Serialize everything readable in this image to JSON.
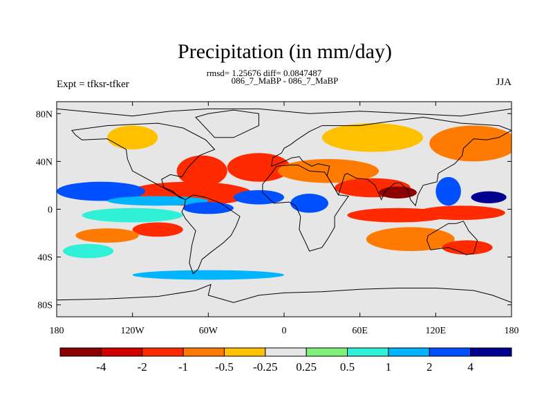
{
  "chart_data": {
    "type": "heatmap",
    "title": "Precipitation (in mm/day)",
    "subtitle_stats": "rmsd= 1.25676 diff= 0.0847487",
    "subtitle_runs": "086_7_MaBP - 086_7_MaBP",
    "left_label": "Expt = tfksr-tfker",
    "right_label": "JJA",
    "x_ticks": [
      "180",
      "120W",
      "60W",
      "0",
      "60E",
      "120E",
      "180"
    ],
    "x_tick_values": [
      -180,
      -120,
      -60,
      0,
      60,
      120,
      180
    ],
    "y_ticks": [
      "80N",
      "40N",
      "0",
      "40S",
      "80S"
    ],
    "y_tick_values": [
      80,
      40,
      0,
      -40,
      -80
    ],
    "xlim": [
      -180,
      180
    ],
    "ylim": [
      -90,
      90
    ],
    "colorbar": {
      "levels": [
        "-4",
        "-2",
        "-1",
        "-0.5",
        "-0.25",
        "0.25",
        "0.5",
        "1",
        "2",
        "4"
      ],
      "colors": [
        "#8b0000",
        "#d10000",
        "#ff2a00",
        "#ff7a00",
        "#ffc000",
        "#e6e6e6",
        "#7ff078",
        "#30f0d8",
        "#00b4ff",
        "#0050ff",
        "#000090"
      ]
    },
    "features": [
      {
        "lon": -105,
        "lat": 12,
        "rx": 50,
        "ry": 7,
        "class": 0
      },
      {
        "lon": -75,
        "lat": 13,
        "rx": 50,
        "ry": 10,
        "class": 2
      },
      {
        "lon": -65,
        "lat": 32,
        "rx": 20,
        "ry": 13,
        "class": 2
      },
      {
        "lon": -20,
        "lat": 35,
        "rx": 25,
        "ry": 12,
        "class": 2
      },
      {
        "lon": 35,
        "lat": 32,
        "rx": 40,
        "ry": 10,
        "class": 3
      },
      {
        "lon": 70,
        "lat": 18,
        "rx": 30,
        "ry": 8,
        "class": 2
      },
      {
        "lon": 90,
        "lat": 14,
        "rx": 15,
        "ry": 5,
        "class": 0
      },
      {
        "lon": 90,
        "lat": -5,
        "rx": 40,
        "ry": 6,
        "class": 2
      },
      {
        "lon": 140,
        "lat": -3,
        "rx": 35,
        "ry": 6,
        "class": 2
      },
      {
        "lon": -100,
        "lat": -17,
        "rx": 20,
        "ry": 6,
        "class": 2
      },
      {
        "lon": -140,
        "lat": -22,
        "rx": 25,
        "ry": 6,
        "class": 3
      },
      {
        "lon": 100,
        "lat": -25,
        "rx": 35,
        "ry": 10,
        "class": 3
      },
      {
        "lon": 145,
        "lat": -32,
        "rx": 20,
        "ry": 6,
        "class": 2
      },
      {
        "lon": 150,
        "lat": 55,
        "rx": 35,
        "ry": 15,
        "class": 3
      },
      {
        "lon": 70,
        "lat": 60,
        "rx": 40,
        "ry": 12,
        "class": 4
      },
      {
        "lon": -120,
        "lat": 60,
        "rx": 20,
        "ry": 10,
        "class": 4
      },
      {
        "lon": -145,
        "lat": 15,
        "rx": 35,
        "ry": 8,
        "class": 9
      },
      {
        "lon": -100,
        "lat": 7,
        "rx": 40,
        "ry": 4,
        "class": 8
      },
      {
        "lon": -60,
        "lat": 1,
        "rx": 20,
        "ry": 5,
        "class": 9
      },
      {
        "lon": -20,
        "lat": 10,
        "rx": 20,
        "ry": 6,
        "class": 9
      },
      {
        "lon": 20,
        "lat": 5,
        "rx": 15,
        "ry": 8,
        "class": 9
      },
      {
        "lon": 162,
        "lat": 10,
        "rx": 14,
        "ry": 5,
        "class": 10
      },
      {
        "lon": 130,
        "lat": 15,
        "rx": 10,
        "ry": 12,
        "class": 9
      },
      {
        "lon": -120,
        "lat": -5,
        "rx": 40,
        "ry": 6,
        "class": 7
      },
      {
        "lon": -155,
        "lat": -35,
        "rx": 20,
        "ry": 6,
        "class": 7
      },
      {
        "lon": -60,
        "lat": -55,
        "rx": 60,
        "ry": 4,
        "class": 8
      }
    ]
  }
}
